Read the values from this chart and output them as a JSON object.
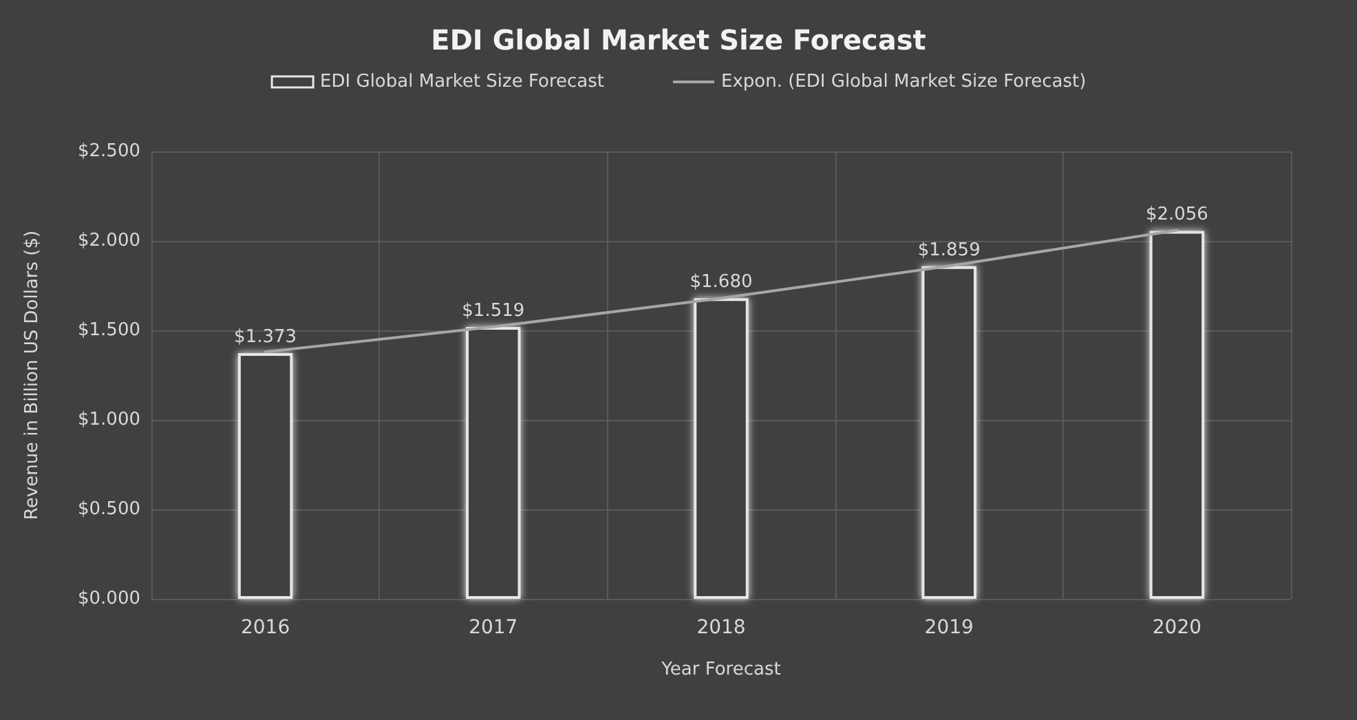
{
  "chart_data": {
    "type": "bar",
    "title": "EDI Global Market Size Forecast",
    "xlabel": "Year Forecast",
    "ylabel": "Revenue in Billion US Dollars ($)",
    "categories": [
      "2016",
      "2017",
      "2018",
      "2019",
      "2020"
    ],
    "series": [
      {
        "name": "EDI Global Market Size Forecast",
        "color": "#e6e6e6",
        "values": [
          1.373,
          1.519,
          1.68,
          1.859,
          2.056
        ],
        "value_labels": [
          "$1.373",
          "$1.519",
          "$1.680",
          "$1.859",
          "$2.056"
        ]
      },
      {
        "name": "Expon. (EDI Global Market Size Forecast)",
        "type": "line",
        "color": "#a6a6a6",
        "values": [
          1.38,
          1.52,
          1.68,
          1.86,
          2.06
        ],
        "marker": "none",
        "line_style": "solid"
      }
    ],
    "ylim": [
      0,
      2.5
    ],
    "yticks": [
      {
        "value": 0,
        "label": "$0.000"
      },
      {
        "value": 0.5,
        "label": "$0.500"
      },
      {
        "value": 1,
        "label": "$1.000"
      },
      {
        "value": 1.5,
        "label": "$1.500"
      },
      {
        "value": 2,
        "label": "$2.000"
      },
      {
        "value": 2.5,
        "label": "$2.500"
      }
    ],
    "grid": true,
    "legend": "top"
  }
}
